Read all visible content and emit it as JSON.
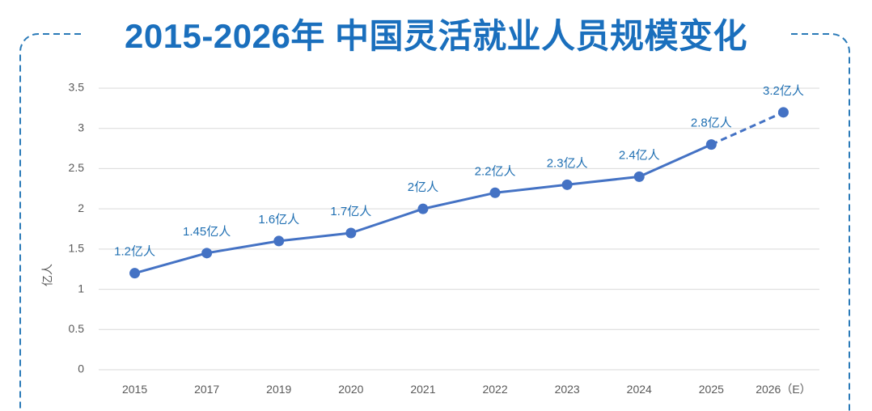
{
  "colors": {
    "title": "#1a6fbd",
    "line": "#4472c4",
    "frame": "#2a7ab8",
    "data_label": "#1f6fb2",
    "grid": "#d9d9d9",
    "tick": "#595959"
  },
  "chart_data": {
    "type": "line",
    "title": "2015-2026年 中国灵活就业人员规模变化",
    "xlabel": "",
    "ylabel": "亿人",
    "categories": [
      "2015",
      "2017",
      "2019",
      "2020",
      "2021",
      "2022",
      "2023",
      "2024",
      "2025",
      "2026（E）"
    ],
    "values": [
      1.2,
      1.45,
      1.6,
      1.7,
      2,
      2.2,
      2.3,
      2.4,
      2.8,
      3.2
    ],
    "data_labels": [
      "1.2亿人",
      "1.45亿人",
      "1.6亿人",
      "1.7亿人",
      "2亿人",
      "2.2亿人",
      "2.3亿人",
      "2.4亿人",
      "2.8亿人",
      "3.2亿人"
    ],
    "ylim": [
      0,
      3.5
    ],
    "yticks": [
      0,
      0.5,
      1,
      1.5,
      2,
      2.5,
      3,
      3.5
    ],
    "grid": true,
    "legend": "none",
    "last_segment_dashed": true
  }
}
